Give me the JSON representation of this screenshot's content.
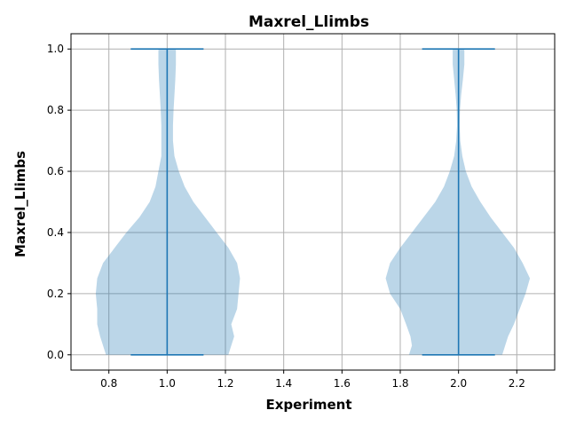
{
  "chart_data": {
    "type": "violin",
    "title": "Maxrel_Llimbs",
    "xlabel": "Experiment",
    "ylabel": "Maxrel_Llimbs",
    "xlim": [
      0.67,
      2.33
    ],
    "ylim": [
      -0.05,
      1.05
    ],
    "xticks": [
      0.8,
      1.0,
      1.2,
      1.4,
      1.6,
      1.8,
      2.0,
      2.2
    ],
    "xtick_labels": [
      "0.8",
      "1.0",
      "1.2",
      "1.4",
      "1.6",
      "1.8",
      "2.0",
      "2.2"
    ],
    "yticks": [
      0.0,
      0.2,
      0.4,
      0.6,
      0.8,
      1.0
    ],
    "ytick_labels": [
      "0.0",
      "0.2",
      "0.4",
      "0.6",
      "0.8",
      "1.0"
    ],
    "grid": true,
    "color": "#1f77b4",
    "violins": [
      {
        "position": 1.0,
        "min": 0.0,
        "max": 1.0,
        "profile": [
          [
            0.0,
            0.21,
            0.21
          ],
          [
            0.03,
            0.22,
            0.22
          ],
          [
            0.06,
            0.23,
            0.23
          ],
          [
            0.1,
            0.24,
            0.22
          ],
          [
            0.15,
            0.24,
            0.24
          ],
          [
            0.2,
            0.245,
            0.245
          ],
          [
            0.25,
            0.24,
            0.25
          ],
          [
            0.3,
            0.22,
            0.24
          ],
          [
            0.35,
            0.18,
            0.21
          ],
          [
            0.4,
            0.14,
            0.17
          ],
          [
            0.45,
            0.095,
            0.13
          ],
          [
            0.5,
            0.06,
            0.09
          ],
          [
            0.55,
            0.04,
            0.06
          ],
          [
            0.6,
            0.03,
            0.04
          ],
          [
            0.65,
            0.02,
            0.025
          ],
          [
            0.7,
            0.02,
            0.02
          ],
          [
            0.75,
            0.02,
            0.02
          ],
          [
            0.8,
            0.022,
            0.022
          ],
          [
            0.85,
            0.025,
            0.025
          ],
          [
            0.9,
            0.028,
            0.028
          ],
          [
            0.95,
            0.03,
            0.03
          ],
          [
            1.0,
            0.03,
            0.03
          ]
        ]
      },
      {
        "position": 2.0,
        "min": 0.0,
        "max": 1.0,
        "profile": [
          [
            0.0,
            0.17,
            0.15
          ],
          [
            0.03,
            0.16,
            0.16
          ],
          [
            0.06,
            0.165,
            0.17
          ],
          [
            0.1,
            0.18,
            0.19
          ],
          [
            0.15,
            0.2,
            0.21
          ],
          [
            0.2,
            0.235,
            0.23
          ],
          [
            0.25,
            0.25,
            0.245
          ],
          [
            0.3,
            0.235,
            0.22
          ],
          [
            0.35,
            0.2,
            0.19
          ],
          [
            0.4,
            0.16,
            0.15
          ],
          [
            0.45,
            0.12,
            0.11
          ],
          [
            0.5,
            0.08,
            0.075
          ],
          [
            0.55,
            0.05,
            0.045
          ],
          [
            0.6,
            0.03,
            0.025
          ],
          [
            0.65,
            0.015,
            0.013
          ],
          [
            0.7,
            0.008,
            0.006
          ],
          [
            0.75,
            0.005,
            0.004
          ],
          [
            0.8,
            0.006,
            0.005
          ],
          [
            0.85,
            0.01,
            0.009
          ],
          [
            0.9,
            0.015,
            0.015
          ],
          [
            0.95,
            0.02,
            0.02
          ],
          [
            1.0,
            0.02,
            0.02
          ]
        ]
      }
    ],
    "extrema_bar_halfwidth": 0.125
  }
}
